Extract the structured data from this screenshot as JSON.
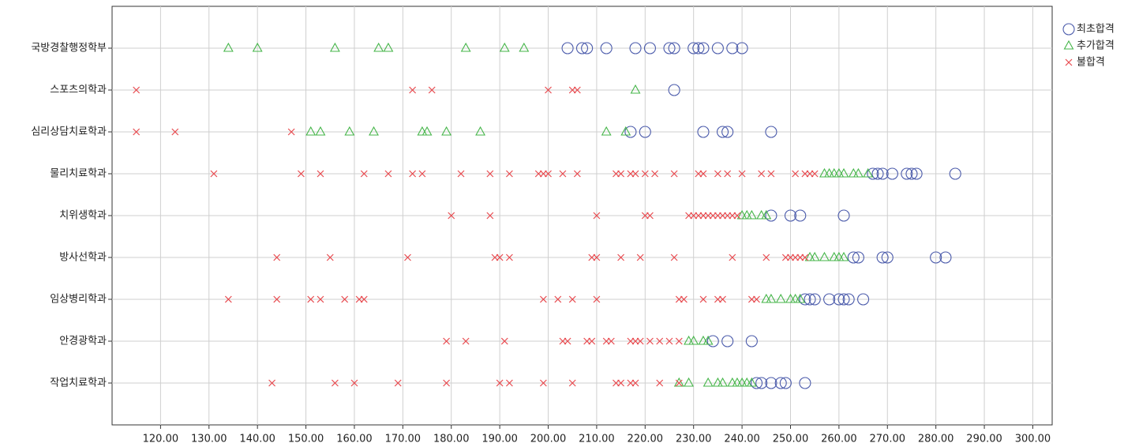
{
  "chart_data": {
    "type": "strip",
    "categories": [
      "국방경찰행정학부",
      "스포츠의학과",
      "심리상담치료학과",
      "물리치료학과",
      "치위생학과",
      "방사선학과",
      "임상병리학과",
      "안경광학과",
      "작업치료학과"
    ],
    "xlim": [
      110,
      304
    ],
    "xticks": [
      {
        "value": 120,
        "label": "120.00"
      },
      {
        "value": 130,
        "label": "130.00"
      },
      {
        "value": 140,
        "label": "140.00"
      },
      {
        "value": 150,
        "label": "150.00"
      },
      {
        "value": 160,
        "label": "160.00"
      },
      {
        "value": 170,
        "label": "170.00"
      },
      {
        "value": 180,
        "label": "180.00"
      },
      {
        "value": 190,
        "label": "190.00"
      },
      {
        "value": 200,
        "label": "200.00"
      },
      {
        "value": 210,
        "label": "210.00"
      },
      {
        "value": 220,
        "label": "220.00"
      },
      {
        "value": 230,
        "label": "230.00"
      },
      {
        "value": 240,
        "label": "240.00"
      },
      {
        "value": 250,
        "label": "250.00"
      },
      {
        "value": 260,
        "label": "260.00"
      },
      {
        "value": 270,
        "label": "270.00"
      },
      {
        "value": 280,
        "label": "280.00"
      },
      {
        "value": 290,
        "label": "290.00"
      },
      {
        "value": 300,
        "label": "300.00"
      }
    ],
    "grid": true,
    "series": [
      {
        "name": "최초합격",
        "color": "#4b5bab",
        "marker": "circle",
        "values": [
          [
            204,
            207,
            208,
            212,
            218,
            221,
            225,
            226,
            230,
            231,
            232,
            235,
            238,
            240
          ],
          [
            226
          ],
          [
            217,
            220,
            232,
            236,
            237,
            246
          ],
          [
            267,
            268,
            269,
            271,
            274,
            275,
            276,
            284
          ],
          [
            246,
            250,
            252,
            261
          ],
          [
            263,
            264,
            269,
            270,
            280,
            282
          ],
          [
            253,
            254,
            255,
            258,
            260,
            261,
            262,
            265
          ],
          [
            234,
            237,
            242
          ],
          [
            243,
            244,
            246,
            248,
            249,
            253
          ]
        ]
      },
      {
        "name": "추가합격",
        "color": "#45b549",
        "marker": "triangle",
        "values": [
          [
            134,
            140,
            156,
            165,
            167,
            183,
            191,
            195
          ],
          [
            218
          ],
          [
            151,
            153,
            159,
            164,
            174,
            175,
            179,
            186,
            212,
            216
          ],
          [
            257,
            258,
            259,
            260,
            261,
            263,
            264,
            266
          ],
          [
            240,
            241,
            242,
            244,
            245
          ],
          [
            254,
            255,
            257,
            259,
            260,
            261
          ],
          [
            245,
            246,
            248,
            250,
            251,
            252
          ],
          [
            229,
            230,
            232,
            233
          ],
          [
            227,
            229,
            233,
            235,
            236,
            238,
            239,
            240,
            241,
            242
          ]
        ]
      },
      {
        "name": "불합격",
        "color": "#e84a4f",
        "marker": "x",
        "values": [
          [],
          [
            115,
            172,
            176,
            200,
            205,
            206
          ],
          [
            115,
            123,
            147
          ],
          [
            131,
            149,
            153,
            162,
            167,
            172,
            174,
            182,
            188,
            192,
            198,
            199,
            200,
            203,
            206,
            214,
            215,
            217,
            218,
            220,
            222,
            226,
            231,
            232,
            235,
            237,
            240,
            244,
            246,
            251,
            253,
            254,
            255
          ],
          [
            180,
            188,
            210,
            220,
            221,
            229,
            230,
            231,
            232,
            233,
            234,
            235,
            236,
            237,
            238,
            239
          ],
          [
            144,
            155,
            171,
            189,
            190,
            192,
            209,
            210,
            215,
            219,
            226,
            238,
            245,
            249,
            250,
            251,
            252,
            253
          ],
          [
            134,
            144,
            151,
            153,
            158,
            161,
            162,
            199,
            202,
            205,
            210,
            227,
            228,
            232,
            235,
            236,
            242,
            243
          ],
          [
            179,
            183,
            191,
            203,
            204,
            208,
            209,
            212,
            213,
            217,
            218,
            219,
            221,
            223,
            225,
            227
          ],
          [
            143,
            156,
            160,
            169,
            179,
            190,
            192,
            199,
            205,
            214,
            215,
            217,
            218,
            223,
            227
          ]
        ]
      }
    ]
  }
}
